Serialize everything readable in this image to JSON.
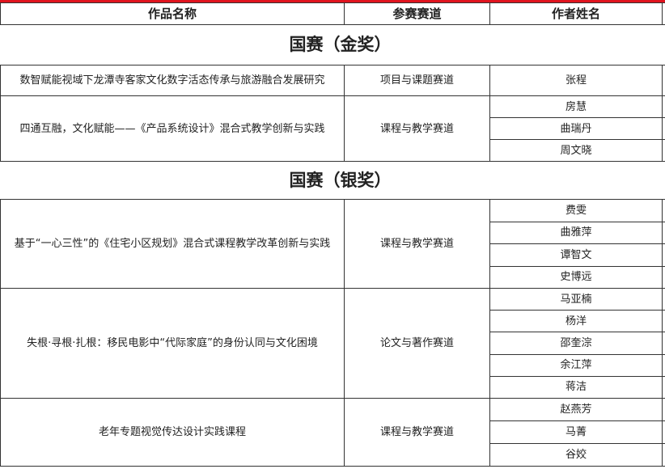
{
  "header": {
    "col_title": "作品名称",
    "col_track": "参赛赛道",
    "col_authors": "作者姓名"
  },
  "colors": {
    "top_bar": "#e0141e"
  },
  "sections": [
    {
      "label": "国赛（金奖）",
      "entries": [
        {
          "title": "数智赋能视域下龙潭寺客家文化数字活态传承与旅游融合发展研究",
          "track": "项目与课题赛道",
          "authors": [
            "张程"
          ]
        },
        {
          "title": "四通互融，文化赋能——《产品系统设计》混合式教学创新与实践",
          "track": "课程与教学赛道",
          "authors": [
            "房慧",
            "曲瑞丹",
            "周文晓"
          ]
        }
      ]
    },
    {
      "label": "国赛（银奖）",
      "entries": [
        {
          "title": "基于“一心三性”的《住宅小区规划》混合式课程教学改革创新与实践",
          "track": "课程与教学赛道",
          "authors": [
            "费雯",
            "曲雅萍",
            "谭智文",
            "史博远"
          ]
        },
        {
          "title": "失根·寻根·扎根：移民电影中“代际家庭”的身份认同与文化困境",
          "track": "论文与著作赛道",
          "authors": [
            "马亚楠",
            "杨洋",
            "邵奎淙",
            "余江萍",
            "蒋洁"
          ]
        },
        {
          "title": "老年专题视觉传达设计实践课程",
          "track": "课程与教学赛道",
          "authors": [
            "赵燕芳",
            "马菁",
            "谷姣"
          ]
        }
      ]
    }
  ]
}
